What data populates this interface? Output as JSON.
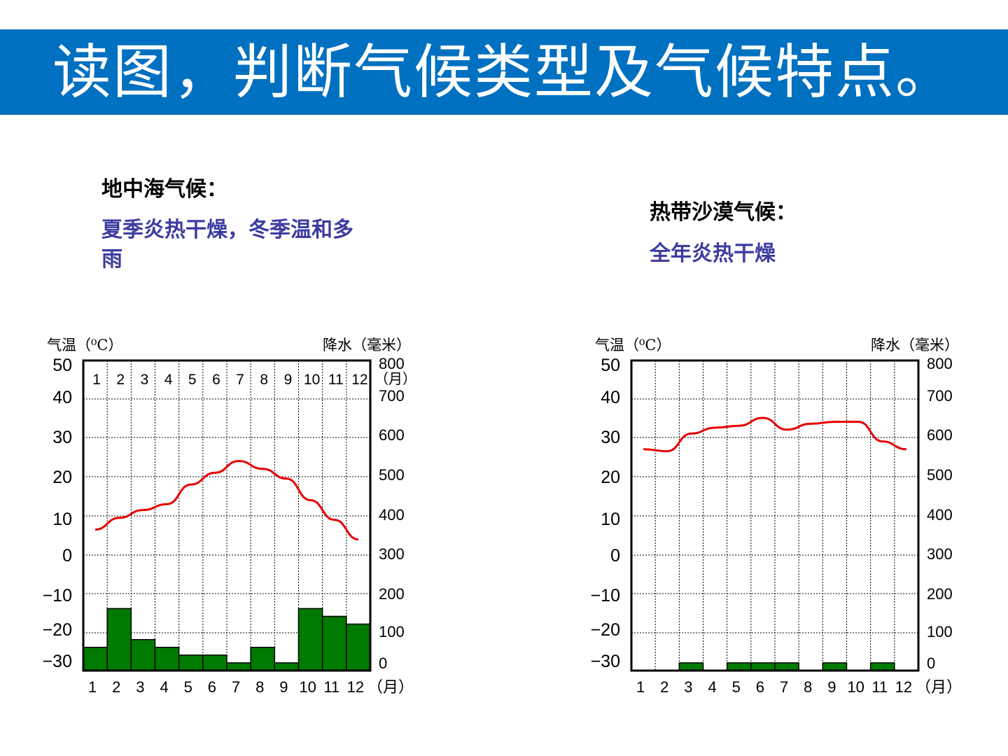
{
  "header": {
    "title": "读图，判断气候类型及气候特点。"
  },
  "left_label": {
    "name": "地中海气候：",
    "description": "夏季炎热干燥，冬季温和多雨"
  },
  "right_label": {
    "name": "热带沙漠气候：",
    "description": "全年炎热干燥"
  },
  "colors": {
    "banner": "#0070c0",
    "bar": "#007a00",
    "line": "#e60000",
    "description": "#3c3ca0"
  },
  "chart_data": [
    {
      "type": "bar+line",
      "ylabel_left": "气温（⁰C）",
      "ylabel_right": "降水（毫米）",
      "xunit": "（月）",
      "categories": [
        "1",
        "2",
        "3",
        "4",
        "5",
        "6",
        "7",
        "8",
        "9",
        "10",
        "11",
        "12"
      ],
      "temp_ticks": [
        "50",
        "40",
        "30",
        "20",
        "10",
        "0",
        "−10",
        "−20",
        "−30"
      ],
      "precip_ticks": [
        "800",
        "700",
        "600",
        "500",
        "400",
        "300",
        "200",
        "100",
        "0"
      ],
      "ylim_precip": [
        0,
        800
      ],
      "show_top_months": true,
      "series": [
        {
          "type": "line",
          "values": [
            6.5,
            9.5,
            11.5,
            13,
            18,
            21,
            24,
            22,
            19.5,
            14,
            9,
            4
          ]
        },
        {
          "type": "bar",
          "values": [
            60,
            160,
            80,
            60,
            40,
            40,
            20,
            60,
            20,
            160,
            140,
            120
          ]
        }
      ]
    },
    {
      "type": "bar+line",
      "ylabel_left": "气温（⁰C）",
      "ylabel_right": "降水（毫米）",
      "xunit": "（月）",
      "categories": [
        "1",
        "2",
        "3",
        "4",
        "5",
        "6",
        "7",
        "8",
        "9",
        "10",
        "11",
        "12"
      ],
      "temp_ticks": [
        "50",
        "40",
        "30",
        "20",
        "10",
        "0",
        "−10",
        "−20",
        "−30"
      ],
      "precip_ticks": [
        "800",
        "700",
        "600",
        "500",
        "400",
        "300",
        "200",
        "100",
        "0"
      ],
      "ylim_precip": [
        0,
        800
      ],
      "show_top_months": false,
      "series": [
        {
          "type": "line",
          "values": [
            27,
            26.5,
            31,
            32.5,
            33,
            35,
            32,
            33.5,
            34,
            34,
            29,
            27
          ]
        },
        {
          "type": "bar",
          "values": [
            0,
            0,
            20,
            0,
            20,
            20,
            20,
            0,
            20,
            0,
            20,
            0
          ]
        }
      ]
    }
  ]
}
